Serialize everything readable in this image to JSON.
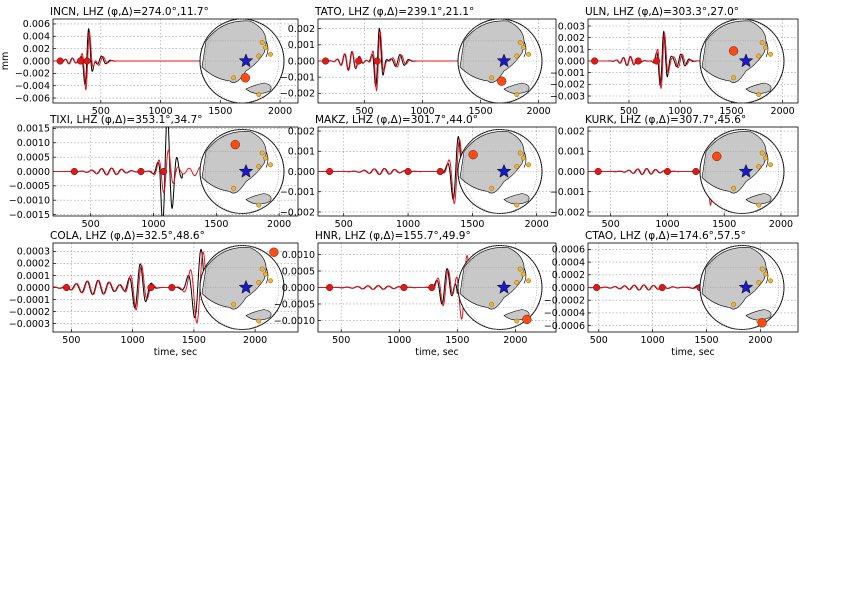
{
  "figure": {
    "ylabel": "mm",
    "xlabel": "time, sec"
  },
  "colors": {
    "observed": "#000000",
    "synthetic": "#e8141c",
    "marker_red": "#dd1a1a",
    "marker_orange": "#ff4a14",
    "globe_land": "#c8c8c8",
    "station_dots": "#f5b22a",
    "epicenter_star": "#1a1acc",
    "grid": "#9a9a9a"
  },
  "chart_data": [
    {
      "type": "line",
      "title": "INCN, LHZ $(\\phi,\\Delta)=$274.0$^\\circ$,11.7$^\\circ$",
      "title_text": "INCN, LHZ (φ,Δ)=274.0°,11.7°",
      "xlim": [
        100,
        2150
      ],
      "ylim": [
        -0.0068,
        0.0068
      ],
      "xticks": [
        {
          "v": 500,
          "t": "500"
        },
        {
          "v": 1000,
          "t": "1000"
        },
        {
          "v": 1500,
          "t": "1500"
        },
        {
          "v": 2000,
          "t": "2000"
        }
      ],
      "yticks": [
        {
          "v": 0.006,
          "t": "0.006"
        },
        {
          "v": 0.004,
          "t": "0.004"
        },
        {
          "v": 0.002,
          "t": "0.002"
        },
        {
          "v": 0,
          "t": "0.000"
        },
        {
          "v": -0.002,
          "t": "−0.002"
        },
        {
          "v": -0.004,
          "t": "−0.004"
        },
        {
          "v": -0.006,
          "t": "−0.006"
        }
      ],
      "ylabel": "mm",
      "xlabel": "",
      "packets": [
        {
          "c": 250,
          "a": 0.0005,
          "p": 60,
          "w": 60
        },
        {
          "c": 390,
          "a": 0.0055,
          "p": 70,
          "w": 40
        },
        {
          "c": 500,
          "a": 0.0008,
          "p": 80,
          "w": 60
        }
      ],
      "syn_scale": 1.0,
      "x_end": 2000,
      "obs_end": 720,
      "markers": [
        {
          "x": 160,
          "c": "red"
        },
        {
          "x": 330,
          "c": "red"
        },
        {
          "x": 385,
          "c": "red"
        }
      ],
      "globe": {
        "station": [
          0.54,
          0.7
        ],
        "station_color": "orange"
      }
    },
    {
      "type": "line",
      "title": "TATO, LHZ $(\\phi,\\Delta)=$239.1$^\\circ$,21.1$^\\circ$",
      "title_text": "TATO, LHZ (φ,Δ)=239.1°,21.1°",
      "xlim": [
        100,
        2150
      ],
      "ylim": [
        -0.0026,
        0.0026
      ],
      "xticks": [
        {
          "v": 500,
          "t": "500"
        },
        {
          "v": 1000,
          "t": "1000"
        },
        {
          "v": 1500,
          "t": "1500"
        },
        {
          "v": 2000,
          "t": "2000"
        }
      ],
      "yticks": [
        {
          "v": 0.002,
          "t": "0.002"
        },
        {
          "v": 0.001,
          "t": "0.001"
        },
        {
          "v": 0,
          "t": "0.000"
        },
        {
          "v": -0.001,
          "t": "−0.001"
        },
        {
          "v": -0.002,
          "t": "−0.002"
        }
      ],
      "ylabel": "",
      "xlabel": "",
      "packets": [
        {
          "c": 380,
          "a": 0.0006,
          "p": 65,
          "w": 90
        },
        {
          "c": 620,
          "a": 0.0021,
          "p": 70,
          "w": 45
        },
        {
          "c": 800,
          "a": 0.0004,
          "p": 80,
          "w": 70
        }
      ],
      "syn_scale": 1.0,
      "x_end": 1850,
      "obs_end": 950,
      "markers": [
        {
          "x": 165,
          "c": "red"
        },
        {
          "x": 450,
          "c": "red"
        },
        {
          "x": 610,
          "c": "red"
        }
      ],
      "globe": {
        "station": [
          0.52,
          0.74
        ],
        "station_color": "orange"
      }
    },
    {
      "type": "line",
      "title": "ULN, LHZ $(\\phi,\\Delta)=$303.3$^\\circ$,27.0$^\\circ$",
      "title_text": "ULN, LHZ (φ,Δ)=303.3°,27.0°",
      "xlim": [
        100,
        2150
      ],
      "ylim": [
        -0.0036,
        0.0036
      ],
      "xticks": [
        {
          "v": 500,
          "t": "500"
        },
        {
          "v": 1000,
          "t": "1000"
        },
        {
          "v": 1500,
          "t": "1500"
        },
        {
          "v": 2000,
          "t": "2000"
        }
      ],
      "yticks": [
        {
          "v": 0.003,
          "t": "0.003"
        },
        {
          "v": 0.002,
          "t": "0.002"
        },
        {
          "v": 0.001,
          "t": "0.001"
        },
        {
          "v": 0,
          "t": "0.000"
        },
        {
          "v": -0.001,
          "t": "−0.001"
        },
        {
          "v": -0.002,
          "t": "−0.002"
        },
        {
          "v": -0.003,
          "t": "−0.003"
        }
      ],
      "ylabel": "",
      "xlabel": "",
      "packets": [
        {
          "c": 500,
          "a": 0.0004,
          "p": 70,
          "w": 100
        },
        {
          "c": 830,
          "a": 0.0026,
          "p": 75,
          "w": 55
        },
        {
          "c": 1000,
          "a": 0.0006,
          "p": 85,
          "w": 80
        }
      ],
      "syn_scale": 1.0,
      "x_end": 1800,
      "obs_end": 1200,
      "markers": [
        {
          "x": 165,
          "c": "red"
        },
        {
          "x": 590,
          "c": "red"
        },
        {
          "x": 770,
          "c": "red"
        }
      ],
      "globe": {
        "station": [
          0.4,
          0.38
        ],
        "station_color": "orange"
      }
    },
    {
      "type": "line",
      "title": "TIXI, LHZ $(\\phi,\\Delta)=$353.1$^\\circ$,34.7$^\\circ$",
      "title_text": "TIXI, LHZ (φ,Δ)=353.1°,34.7°",
      "xlim": [
        200,
        2150
      ],
      "ylim": [
        -0.00155,
        0.00155
      ],
      "xticks": [
        {
          "v": 500,
          "t": "500"
        },
        {
          "v": 1000,
          "t": "1000"
        },
        {
          "v": 1500,
          "t": "1500"
        },
        {
          "v": 2000,
          "t": "2000"
        }
      ],
      "yticks": [
        {
          "v": 0.0015,
          "t": "0.0015"
        },
        {
          "v": 0.001,
          "t": "0.0010"
        },
        {
          "v": 0.0005,
          "t": "0.0005"
        },
        {
          "v": 0,
          "t": "0.0000"
        },
        {
          "v": -0.0005,
          "t": "−0.0005"
        },
        {
          "v": -0.001,
          "t": "−0.0010"
        },
        {
          "v": -0.0015,
          "t": "−0.0015"
        }
      ],
      "ylabel": "",
      "xlabel": "",
      "packets": [
        {
          "c": 650,
          "a": 0.00012,
          "p": 80,
          "w": 150
        },
        {
          "c": 1100,
          "a": 0.0008,
          "p": 80,
          "w": 70
        },
        {
          "c": 1350,
          "a": 0.00015,
          "p": 90,
          "w": 130
        }
      ],
      "syn_scale": 1.0,
      "obs_big": 2.6,
      "x_end": 1800,
      "obs_end": 1230,
      "markers": [
        {
          "x": 370,
          "c": "red"
        },
        {
          "x": 900,
          "c": "red"
        },
        {
          "x": 1080,
          "c": "red"
        }
      ],
      "globe": {
        "station": [
          0.42,
          0.18
        ],
        "station_color": "orange"
      }
    },
    {
      "type": "line",
      "title": "MAKZ, LHZ $(\\phi,\\Delta)=$301.7$^\\circ$,44.0$^\\circ$",
      "title_text": "MAKZ, LHZ (φ,Δ)=301.7°,44.0°",
      "xlim": [
        300,
        2150
      ],
      "ylim": [
        -0.0022,
        0.0022
      ],
      "xticks": [
        {
          "v": 500,
          "t": "500"
        },
        {
          "v": 1000,
          "t": "1000"
        },
        {
          "v": 1500,
          "t": "1500"
        },
        {
          "v": 2000,
          "t": "2000"
        }
      ],
      "yticks": [
        {
          "v": 0.002,
          "t": "0.002"
        },
        {
          "v": 0.001,
          "t": "0.001"
        },
        {
          "v": 0,
          "t": "0.000"
        },
        {
          "v": -0.001,
          "t": "−0.001"
        },
        {
          "v": -0.002,
          "t": "−0.002"
        }
      ],
      "ylabel": "",
      "xlabel": "",
      "packets": [
        {
          "c": 800,
          "a": 0.00015,
          "p": 80,
          "w": 150
        },
        {
          "c": 1380,
          "a": 0.0018,
          "p": 90,
          "w": 60
        },
        {
          "c": 1550,
          "a": 0.0004,
          "p": 100,
          "w": 90
        }
      ],
      "syn_scale": 1.0,
      "x_end": 1800,
      "obs_end": 1420,
      "markers": [
        {
          "x": 390,
          "c": "red"
        },
        {
          "x": 1000,
          "c": "red"
        },
        {
          "x": 1250,
          "c": "red"
        }
      ],
      "globe": {
        "station": [
          0.18,
          0.3
        ],
        "station_color": "orange"
      }
    },
    {
      "type": "line",
      "title": "KURK, LHZ $(\\phi,\\Delta)=$307.7$^\\circ$,45.6$^\\circ$",
      "title_text": "KURK, LHZ (φ,Δ)=307.7°,45.6°",
      "xlim": [
        300,
        2150
      ],
      "ylim": [
        -0.0022,
        0.0022
      ],
      "xticks": [
        {
          "v": 500,
          "t": "500"
        },
        {
          "v": 1000,
          "t": "1000"
        },
        {
          "v": 1500,
          "t": "1500"
        },
        {
          "v": 2000,
          "t": "2000"
        }
      ],
      "yticks": [
        {
          "v": 0.002,
          "t": "0.002"
        },
        {
          "v": 0.001,
          "t": "0.001"
        },
        {
          "v": 0,
          "t": "0.000"
        },
        {
          "v": -0.001,
          "t": "−0.001"
        },
        {
          "v": -0.002,
          "t": "−0.002"
        }
      ],
      "ylabel": "",
      "xlabel": "",
      "packets": [
        {
          "c": 800,
          "a": 0.00015,
          "p": 80,
          "w": 150
        },
        {
          "c": 1400,
          "a": 0.0019,
          "p": 90,
          "w": 60
        },
        {
          "c": 1560,
          "a": 0.0004,
          "p": 100,
          "w": 90
        }
      ],
      "syn_scale": 1.0,
      "x_end": 1800,
      "obs_end": 1240,
      "markers": [
        {
          "x": 390,
          "c": "red"
        },
        {
          "x": 1000,
          "c": "red"
        },
        {
          "x": 1250,
          "c": "red"
        }
      ],
      "globe": {
        "station": [
          0.2,
          0.32
        ],
        "station_color": "orange"
      }
    },
    {
      "type": "line",
      "title": "COLA, LHZ $(\\phi,\\Delta)=$32.5$^\\circ$,48.6$^\\circ$",
      "title_text": "COLA, LHZ (φ,Δ)=32.5°,48.6°",
      "xlim": [
        350,
        2350
      ],
      "ylim": [
        -0.00037,
        0.00037
      ],
      "xticks": [
        {
          "v": 500,
          "t": "500"
        },
        {
          "v": 1000,
          "t": "1000"
        },
        {
          "v": 1500,
          "t": "1500"
        },
        {
          "v": 2000,
          "t": "2000"
        }
      ],
      "yticks": [
        {
          "v": 0.0003,
          "t": "0.0003"
        },
        {
          "v": 0.0002,
          "t": "0.0002"
        },
        {
          "v": 0.0001,
          "t": "0.0001"
        },
        {
          "v": 0,
          "t": "0.0000"
        },
        {
          "v": -0.0001,
          "t": "−0.0001"
        },
        {
          "v": -0.0002,
          "t": "−0.0002"
        },
        {
          "v": -0.0003,
          "t": "−0.0003"
        }
      ],
      "ylabel": "",
      "xlabel": "time, sec",
      "packets": [
        {
          "c": 700,
          "a": 6e-05,
          "p": 90,
          "w": 200
        },
        {
          "c": 1050,
          "a": 0.0002,
          "p": 95,
          "w": 80
        },
        {
          "c": 1550,
          "a": 0.00032,
          "p": 110,
          "w": 90
        }
      ],
      "syn_scale": 1.0,
      "x_end": 1900,
      "obs_end": 1620,
      "markers": [
        {
          "x": 460,
          "c": "red"
        },
        {
          "x": 1150,
          "c": "red"
        },
        {
          "x": 1320,
          "c": "red"
        }
      ],
      "globe": {
        "station": [
          0.88,
          0.08
        ],
        "station_color": "orange"
      }
    },
    {
      "type": "line",
      "title": "HNR, LHZ $(\\phi,\\Delta)=$155.7$^\\circ$,49.9$^\\circ$",
      "title_text": "HNR, LHZ (φ,Δ)=155.7°,49.9°",
      "xlim": [
        300,
        2350
      ],
      "ylim": [
        -0.00135,
        0.00135
      ],
      "xticks": [
        {
          "v": 500,
          "t": "500"
        },
        {
          "v": 1000,
          "t": "1000"
        },
        {
          "v": 1500,
          "t": "1500"
        },
        {
          "v": 2000,
          "t": "2000"
        }
      ],
      "yticks": [
        {
          "v": 0.001,
          "t": "0.0010"
        },
        {
          "v": 0.0005,
          "t": "0.0005"
        },
        {
          "v": 0,
          "t": "0.0000"
        },
        {
          "v": -0.0005,
          "t": "−0.0005"
        },
        {
          "v": -0.001,
          "t": "−0.0010"
        }
      ],
      "ylabel": "",
      "xlabel": "time, sec",
      "packets": [
        {
          "c": 800,
          "a": 6e-05,
          "p": 90,
          "w": 200
        },
        {
          "c": 1400,
          "a": 0.0006,
          "p": 95,
          "w": 80
        },
        {
          "c": 1560,
          "a": 0.0011,
          "p": 105,
          "w": 70
        }
      ],
      "syn_scale": 1.0,
      "x_end": 1900,
      "obs_end": 1500,
      "markers": [
        {
          "x": 400,
          "c": "red"
        },
        {
          "x": 1040,
          "c": "red"
        },
        {
          "x": 1280,
          "c": "red"
        }
      ],
      "globe": {
        "station": [
          0.82,
          0.88
        ],
        "station_color": "orange"
      }
    },
    {
      "type": "line",
      "title": "CTAO, LHZ $(\\phi,\\Delta)=$174.6$^\\circ$,57.5$^\\circ$",
      "title_text": "CTAO, LHZ (φ,Δ)=174.6°,57.5°",
      "xlim": [
        400,
        2350
      ],
      "ylim": [
        -0.0007,
        0.0007
      ],
      "xticks": [
        {
          "v": 500,
          "t": "500"
        },
        {
          "v": 1000,
          "t": "1000"
        },
        {
          "v": 1500,
          "t": "1500"
        },
        {
          "v": 2000,
          "t": "2000"
        }
      ],
      "yticks": [
        {
          "v": 0.0006,
          "t": "0.0006"
        },
        {
          "v": 0.0004,
          "t": "0.0004"
        },
        {
          "v": 0.0002,
          "t": "0.0002"
        },
        {
          "v": 0,
          "t": "0.0000"
        },
        {
          "v": -0.0002,
          "t": "−0.0002"
        },
        {
          "v": -0.0004,
          "t": "−0.0004"
        },
        {
          "v": -0.0006,
          "t": "−0.0006"
        }
      ],
      "ylabel": "",
      "xlabel": "time, sec",
      "packets": [
        {
          "c": 900,
          "a": 4e-05,
          "p": 90,
          "w": 250
        },
        {
          "c": 1500,
          "a": 5e-05,
          "p": 100,
          "w": 120
        },
        {
          "c": 1770,
          "a": 0.00062,
          "p": 110,
          "w": 70
        }
      ],
      "syn_scale": 1.0,
      "x_end": 1900,
      "obs_end": 1480,
      "markers": [
        {
          "x": 480,
          "c": "red"
        },
        {
          "x": 1090,
          "c": "red"
        },
        {
          "x": 1440,
          "c": "red"
        }
      ],
      "globe": {
        "station": [
          0.74,
          0.92
        ],
        "station_color": "orange"
      }
    }
  ]
}
